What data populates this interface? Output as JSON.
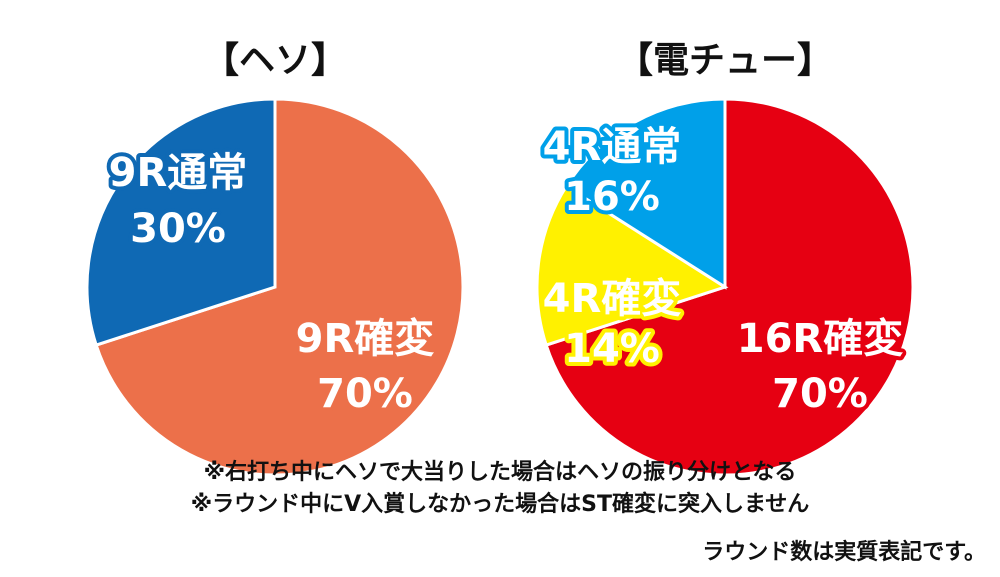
{
  "chart_data": [
    {
      "type": "pie",
      "title": "【ヘソ】",
      "slices": [
        {
          "name": "9R確変",
          "value": 70,
          "label_line1": "9R確変",
          "label_line2": "70%",
          "color": "#ec704a",
          "outline": "#ec704a"
        },
        {
          "name": "9R通常",
          "value": 30,
          "label_line1": "9R通常",
          "label_line2": "30%",
          "color": "#0f69b4",
          "outline": "#0f69b4"
        }
      ]
    },
    {
      "type": "pie",
      "title": "【電チュー】",
      "slices": [
        {
          "name": "16R確変",
          "value": 70,
          "label_line1": "16R確変",
          "label_line2": "70%",
          "color": "#e60012",
          "outline": "#e60012"
        },
        {
          "name": "4R確変",
          "value": 14,
          "label_line1": "4R確変",
          "label_line2": "14%",
          "color": "#fff100",
          "outline": "#fff100"
        },
        {
          "name": "4R通常",
          "value": 16,
          "label_line1": "4R通常",
          "label_line2": "16%",
          "color": "#00a0e9",
          "outline": "#00a0e9"
        }
      ]
    }
  ],
  "notes": [
    "※右打ち中にヘソで大当りした場合はヘソの振り分けとなる",
    "※ラウンド中にV入賞しなかった場合はST確変に突入しません"
  ],
  "footnote": "ラウンド数は実質表記です。",
  "label_text_color": "#ffffff",
  "dark_label_color": "#111111"
}
